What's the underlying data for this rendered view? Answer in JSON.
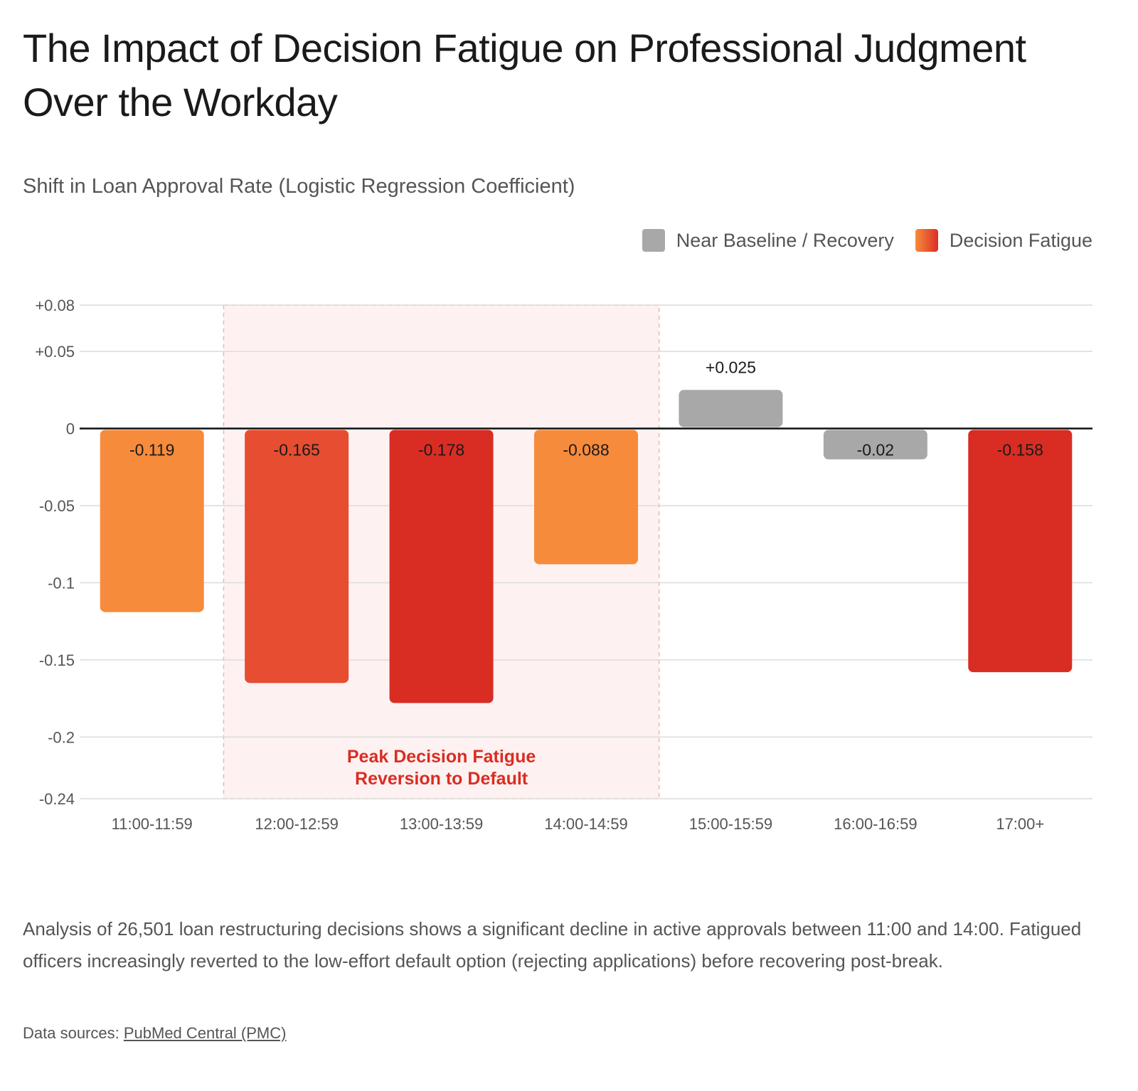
{
  "header": {
    "title": "The Impact of Decision Fatigue on Professional Judgment Over the Workday",
    "subtitle": "Shift in Loan Approval Rate (Logistic Regression Coefficient)"
  },
  "legend": {
    "items": [
      {
        "label": "Near Baseline / Recovery",
        "color": "#a8a8a8"
      },
      {
        "label": "Decision Fatigue",
        "color": "#dc2f26"
      }
    ]
  },
  "chart_data": {
    "type": "bar",
    "categories": [
      "11:00-11:59",
      "12:00-12:59",
      "13:00-13:59",
      "14:00-14:59",
      "15:00-15:59",
      "16:00-16:59",
      "17:00+"
    ],
    "values": [
      -0.119,
      -0.165,
      -0.178,
      -0.088,
      0.025,
      -0.02,
      -0.158
    ],
    "value_labels": [
      "-0.119",
      "-0.165",
      "-0.178",
      "-0.088",
      "+0.025",
      "-0.02",
      "-0.158"
    ],
    "bar_colors": [
      "#f68b3c",
      "#e64d31",
      "#d92d24",
      "#f68b3c",
      "#a8a8a8",
      "#a8a8a8",
      "#d92d24"
    ],
    "y_ticks": [
      0.08,
      0.05,
      0,
      -0.05,
      -0.1,
      -0.15,
      -0.2,
      -0.24
    ],
    "y_tick_labels": [
      "+0.08",
      "+0.05",
      "0",
      "-0.05",
      "-0.1",
      "-0.15",
      "-0.2",
      "-0.24"
    ],
    "ylim": [
      -0.24,
      0.08
    ],
    "grid": true,
    "legend_position": "top-right",
    "highlight": {
      "from_category": "12:00-12:59",
      "to_category": "14:00-14:59",
      "label_lines": [
        "Peak Decision Fatigue",
        "Reversion to Default"
      ],
      "fill": "#fdf2f1",
      "border": "#f0b6b1",
      "text_color": "#d92d24"
    }
  },
  "footer": {
    "caption": "Analysis of 26,501 loan restructuring decisions shows a significant decline in active approvals between 11:00 and 14:00. Fatigued officers increasingly reverted to the low-effort default option (rejecting applications) before recovering post-break.",
    "sources_prefix": "Data sources: ",
    "sources_link": "PubMed Central (PMC)"
  }
}
